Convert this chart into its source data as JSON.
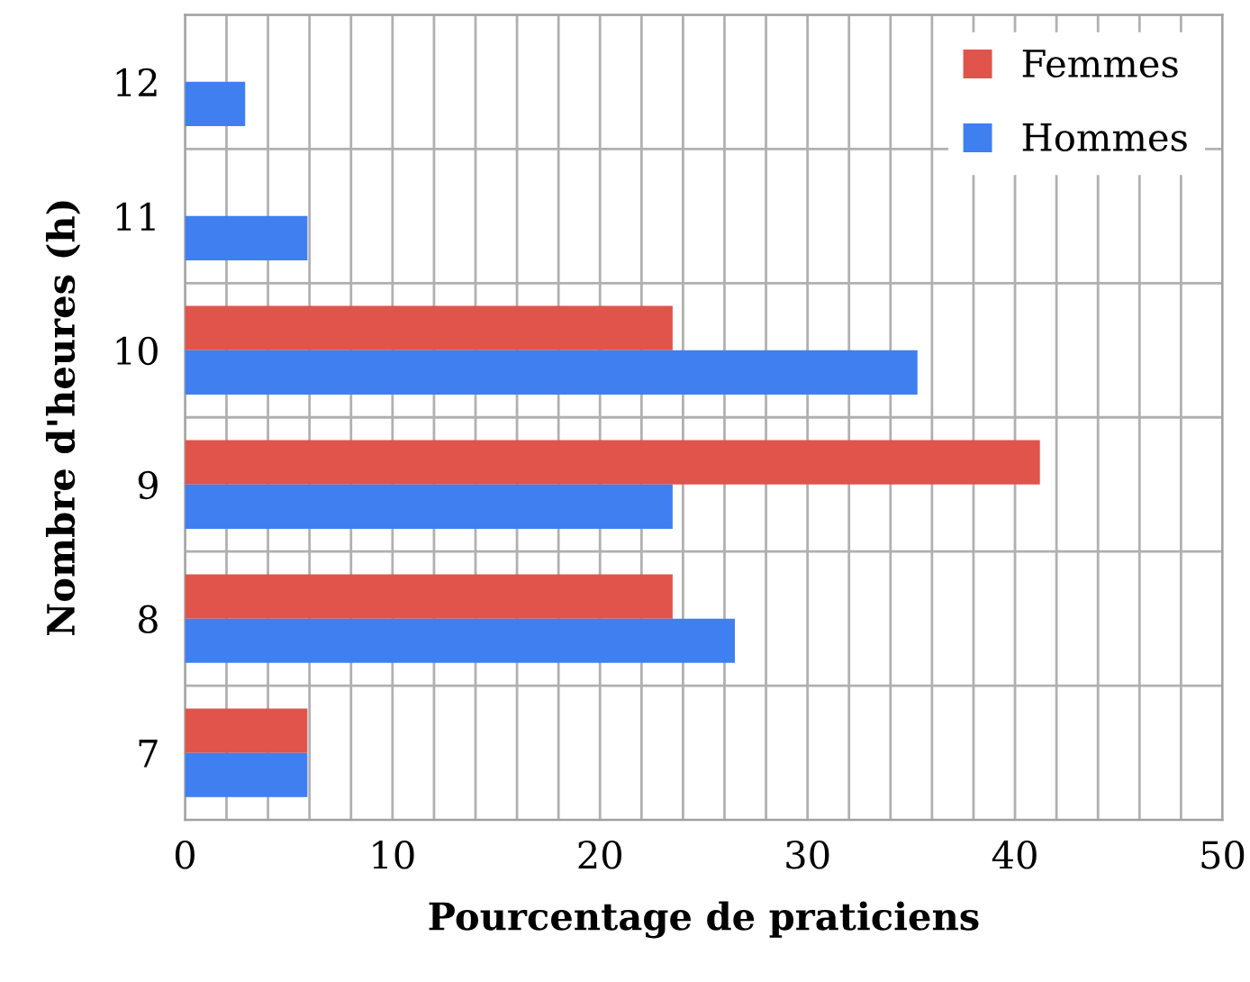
{
  "chart_data": {
    "type": "bar",
    "orientation": "horizontal",
    "xlabel": "Pourcentage de praticiens",
    "ylabel": "Nombre d'heures (h)",
    "categories": [
      "12",
      "11",
      "10",
      "9",
      "8",
      "7"
    ],
    "series": [
      {
        "name": "Femmes",
        "color": "#e0544c",
        "values": [
          null,
          null,
          23.5,
          41.2,
          23.5,
          5.9
        ]
      },
      {
        "name": "Hommes",
        "color": "#3f7ff0",
        "values": [
          2.9,
          5.9,
          35.3,
          23.5,
          26.5,
          5.9
        ]
      }
    ],
    "xlim": [
      0,
      50
    ],
    "xticks": [
      0,
      {
        "value": 2,
        "label": null
      },
      {
        "value": 4,
        "label": null
      },
      {
        "value": 6,
        "label": null
      },
      {
        "value": 8,
        "label": null
      },
      10,
      {
        "value": 12,
        "label": null
      },
      {
        "value": 14,
        "label": null
      },
      {
        "value": 16,
        "label": null
      },
      {
        "value": 18,
        "label": null
      },
      20,
      {
        "value": 22,
        "label": null
      },
      {
        "value": 24,
        "label": null
      },
      {
        "value": 26,
        "label": null
      },
      {
        "value": 28,
        "label": null
      },
      30,
      {
        "value": 32,
        "label": null
      },
      {
        "value": 34,
        "label": null
      },
      {
        "value": 36,
        "label": null
      },
      {
        "value": 38,
        "label": null
      },
      40,
      {
        "value": 42,
        "label": null
      },
      {
        "value": 44,
        "label": null
      },
      {
        "value": 46,
        "label": null
      },
      {
        "value": 48,
        "label": null
      },
      50
    ],
    "grid": true,
    "legend": "top right"
  }
}
